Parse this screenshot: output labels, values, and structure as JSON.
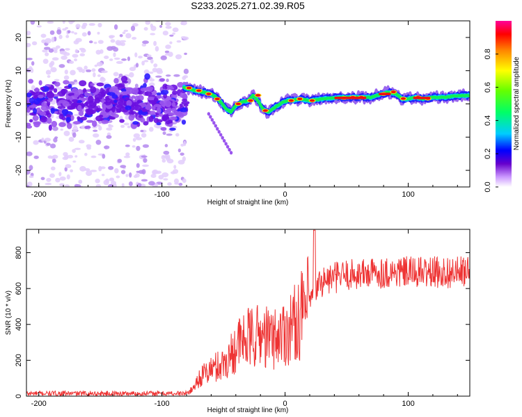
{
  "title": "S233.2025.271.02.39.R05",
  "chart_data": [
    {
      "type": "heatmap",
      "xlabel": "Height of straight line (km)",
      "ylabel": "Frequency (Hz)",
      "xlim": [
        -210,
        150
      ],
      "ylim": [
        -25,
        25
      ],
      "xticks": [
        -200,
        -100,
        0,
        100
      ],
      "yticks": [
        -20,
        -10,
        0,
        10,
        20
      ],
      "ridge": {
        "x": [
          -82,
          -78,
          -72,
          -66,
          -60,
          -56,
          -52,
          -48,
          -44,
          -40,
          -36,
          -30,
          -26,
          -22,
          -18,
          -14,
          -10,
          -6,
          -2,
          2,
          6,
          12,
          20,
          30,
          45,
          60,
          70,
          78,
          84,
          90,
          95,
          100,
          106,
          112,
          120,
          130,
          140,
          150
        ],
        "y": [
          5,
          4.5,
          4,
          3.5,
          3,
          2,
          0.5,
          -1.5,
          -2.5,
          -0.5,
          0.5,
          1,
          2.5,
          1,
          -1.5,
          -2.5,
          -1.5,
          -0.5,
          0.5,
          1,
          1,
          1.5,
          1,
          1.5,
          2,
          2,
          2,
          3,
          3.5,
          3,
          1.5,
          1.5,
          2,
          1.5,
          2,
          2,
          2.5,
          2.5
        ]
      },
      "colorbar": {
        "label": "Normalized spectral amplitude",
        "ticks": [
          "0.0",
          "0.2",
          "0.4",
          "0.6",
          "0.8"
        ],
        "colors": [
          "#ffffff",
          "#cc99ff",
          "#6600cc",
          "#0000ff",
          "#00ccff",
          "#00ff66",
          "#66ff00",
          "#ffff00",
          "#ff8800",
          "#ff0000",
          "#ff0099"
        ]
      }
    },
    {
      "type": "line",
      "xlabel": "Height of straight line (km)",
      "ylabel": "SNR (10 * v/v)",
      "xlim": [
        -210,
        150
      ],
      "ylim": [
        0,
        930
      ],
      "xticks": [
        -200,
        -100,
        0,
        100
      ],
      "yticks": [
        0,
        200,
        400,
        600,
        800
      ],
      "color": "#ee3333",
      "trend": {
        "x": [
          -210,
          -80,
          -75,
          -70,
          -60,
          -50,
          -45,
          -40,
          -30,
          -20,
          -10,
          0,
          10,
          20,
          25,
          30,
          40,
          50,
          60,
          80,
          100,
          120,
          150
        ],
        "y": [
          15,
          15,
          40,
          100,
          150,
          180,
          220,
          280,
          320,
          340,
          320,
          360,
          420,
          520,
          600,
          640,
          660,
          675,
          680,
          690,
          690,
          690,
          690
        ]
      }
    }
  ]
}
